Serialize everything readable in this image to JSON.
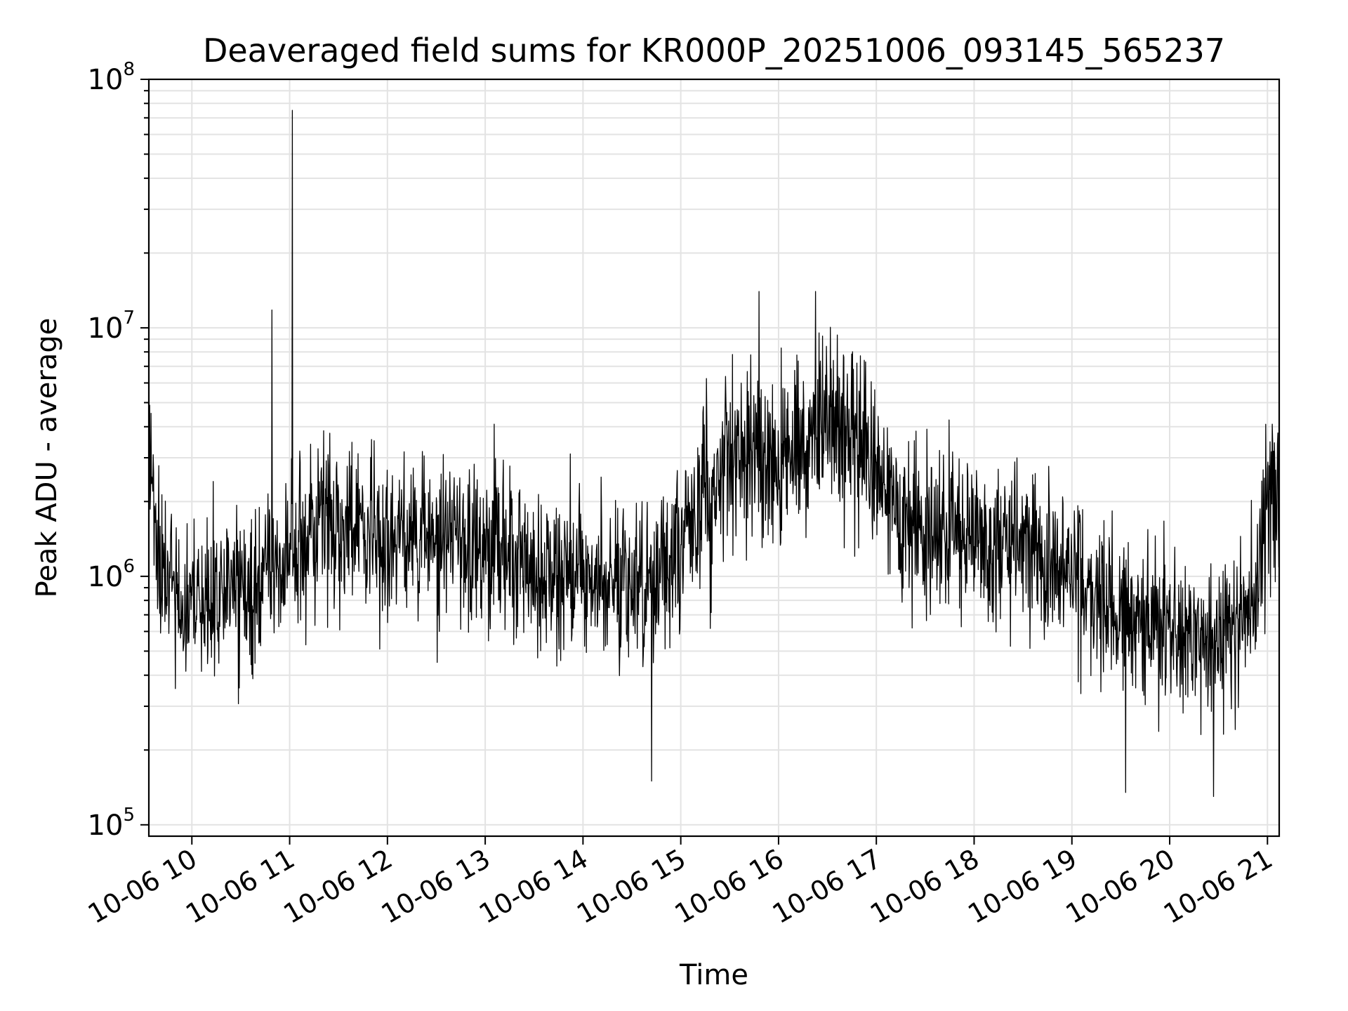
{
  "chart_data": {
    "type": "line",
    "title": "Deaveraged field sums for KR000P_20251006_093145_565237",
    "xlabel": "Time",
    "ylabel": "Peak ADU - average",
    "yscale": "log",
    "ylim": [
      90000,
      100000000
    ],
    "xlim_hours": [
      9.56,
      21.12
    ],
    "grid": true,
    "series_color": "#000000",
    "x_tick_labels": [
      {
        "hour": 10,
        "label": "10-06 10"
      },
      {
        "hour": 11,
        "label": "10-06 11"
      },
      {
        "hour": 12,
        "label": "10-06 12"
      },
      {
        "hour": 13,
        "label": "10-06 13"
      },
      {
        "hour": 14,
        "label": "10-06 14"
      },
      {
        "hour": 15,
        "label": "10-06 15"
      },
      {
        "hour": 16,
        "label": "10-06 16"
      },
      {
        "hour": 17,
        "label": "10-06 17"
      },
      {
        "hour": 18,
        "label": "10-06 18"
      },
      {
        "hour": 19,
        "label": "10-06 19"
      },
      {
        "hour": 20,
        "label": "10-06 20"
      },
      {
        "hour": 21,
        "label": "10-06 21"
      }
    ],
    "y_ticks": [
      {
        "value": 100000,
        "base": "10",
        "exp": "5"
      },
      {
        "value": 1000000,
        "base": "10",
        "exp": "6"
      },
      {
        "value": 10000000,
        "base": "10",
        "exp": "7"
      },
      {
        "value": 100000000,
        "base": "10",
        "exp": "8"
      }
    ],
    "series": [
      {
        "name": "Deaveraged field sum",
        "time_hours": [
          9.56,
          9.6,
          9.7,
          9.8,
          9.9,
          10.0,
          10.2,
          10.4,
          10.6,
          10.8,
          10.85,
          10.9,
          11.0,
          11.03,
          11.1,
          11.3,
          11.5,
          11.8,
          12.0,
          12.3,
          12.5,
          12.8,
          13.0,
          13.3,
          13.5,
          13.8,
          14.0,
          14.3,
          14.5,
          14.8,
          15.0,
          15.2,
          15.4,
          15.6,
          15.8,
          16.0,
          16.2,
          16.4,
          16.5,
          16.7,
          16.9,
          17.0,
          17.2,
          17.4,
          17.6,
          17.8,
          18.0,
          18.3,
          18.6,
          18.9,
          19.0,
          19.2,
          19.4,
          19.6,
          19.8,
          20.0,
          20.2,
          20.4,
          20.6,
          20.8,
          20.9,
          21.0,
          21.12
        ],
        "median_values": [
          3500000,
          2000000,
          1100000,
          850000,
          800000,
          820000,
          850000,
          900000,
          950000,
          1000000,
          1150000,
          1050000,
          1100000,
          1100000,
          1300000,
          1600000,
          1700000,
          1500000,
          1450000,
          1450000,
          1400000,
          1350000,
          1350000,
          1250000,
          1050000,
          1000000,
          1000000,
          950000,
          950000,
          1000000,
          1200000,
          1800000,
          2600000,
          3200000,
          3000000,
          2700000,
          3300000,
          3800000,
          4000000,
          3800000,
          3300000,
          2600000,
          1900000,
          1600000,
          1500000,
          1400000,
          1400000,
          1350000,
          1300000,
          1100000,
          900000,
          850000,
          750000,
          700000,
          650000,
          620000,
          600000,
          580000,
          600000,
          700000,
          900000,
          1900000,
          2200000
        ],
        "spikes": [
          {
            "time_hours": 10.82,
            "value": 11800000
          },
          {
            "time_hours": 11.03,
            "value": 75000000
          },
          {
            "time_hours": 15.8,
            "value": 14000000
          },
          {
            "time_hours": 16.38,
            "value": 14000000
          },
          {
            "time_hours": 14.7,
            "value": 150000
          },
          {
            "time_hours": 20.45,
            "value": 130000
          },
          {
            "time_hours": 19.55,
            "value": 135000
          }
        ]
      }
    ]
  }
}
